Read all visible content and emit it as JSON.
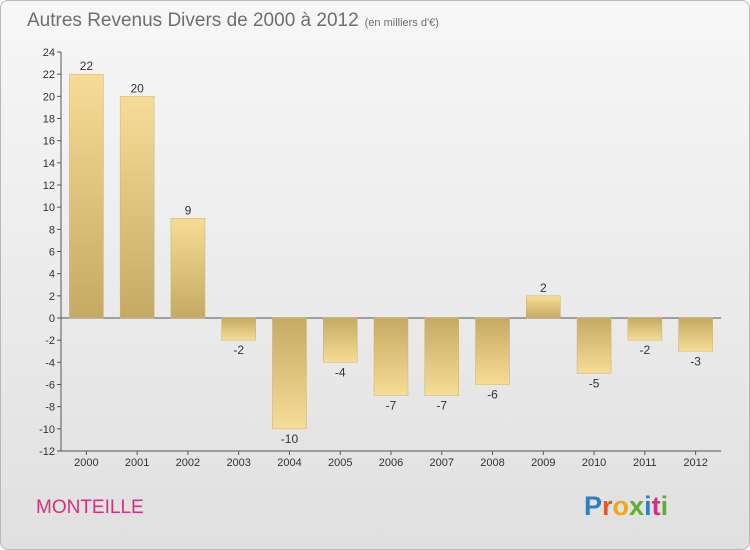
{
  "header": {
    "title": "Autres Revenus Divers de 2000 à 2012",
    "unit": "(en milliers d'€)"
  },
  "footer": {
    "town": "MONTEILLE",
    "logo_letters": [
      "P",
      "r",
      "o",
      "x",
      "i",
      "t",
      "i"
    ],
    "logo_colors": [
      "#2e7fc4",
      "#e35a2a",
      "#f2a71a",
      "#5ab031",
      "#2e7fc4",
      "#d2327e",
      "#5ab031"
    ]
  },
  "chart_data": {
    "type": "bar",
    "title": "Autres Revenus Divers de 2000 à 2012",
    "subtitle": "(en milliers d'€)",
    "xlabel": "",
    "ylabel": "",
    "categories": [
      "2000",
      "2001",
      "2002",
      "2003",
      "2004",
      "2005",
      "2006",
      "2007",
      "2008",
      "2009",
      "2010",
      "2011",
      "2012"
    ],
    "values": [
      22,
      20,
      9,
      -2,
      -10,
      -4,
      -7,
      -7,
      -6,
      2,
      -5,
      -2,
      -3
    ],
    "ylim": [
      -12,
      24
    ],
    "yticks": [
      -12,
      -10,
      -8,
      -6,
      -4,
      -2,
      0,
      2,
      4,
      6,
      8,
      10,
      12,
      14,
      16,
      18,
      20,
      22,
      24
    ],
    "grid": false,
    "legend": "none",
    "bar_color_light": "#f6dc96",
    "bar_color_dark": "#c4aa62"
  }
}
